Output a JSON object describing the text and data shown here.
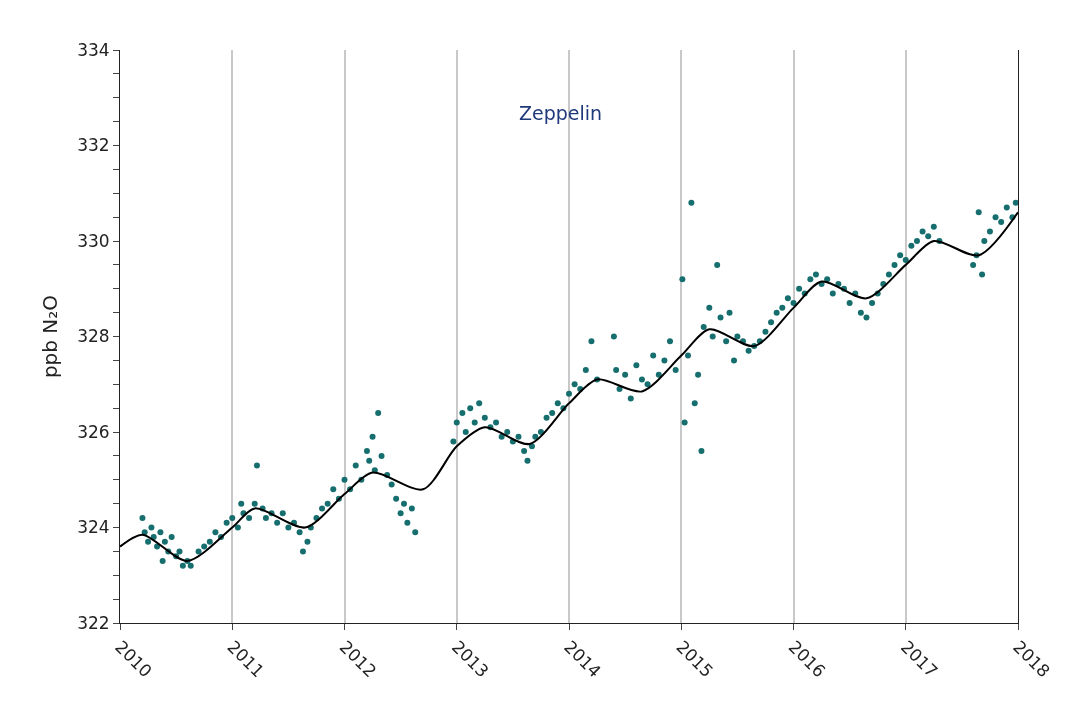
{
  "chart_data": {
    "type": "scatter",
    "ylabel": "ppb N₂O",
    "annotations": [
      "Zeppelin"
    ],
    "xlim": [
      2010,
      2018
    ],
    "xticks": [
      2010,
      2011,
      2012,
      2013,
      2014,
      2015,
      2016,
      2017,
      2018
    ],
    "ylim": [
      322,
      334
    ],
    "yticks": [
      322,
      {
        "value": 322.5,
        "label": null
      },
      {
        "value": 323,
        "label": null
      },
      {
        "value": 323.5,
        "label": null
      },
      324,
      {
        "value": 324.5,
        "label": null
      },
      {
        "value": 325,
        "label": null
      },
      {
        "value": 325.5,
        "label": null
      },
      326,
      {
        "value": 326.5,
        "label": null
      },
      {
        "value": 327,
        "label": null
      },
      {
        "value": 327.5,
        "label": null
      },
      328,
      {
        "value": 328.5,
        "label": null
      },
      {
        "value": 329,
        "label": null
      },
      {
        "value": 329.5,
        "label": null
      },
      330,
      {
        "value": 330.5,
        "label": null
      },
      {
        "value": 331,
        "label": null
      },
      {
        "value": 331.5,
        "label": null
      },
      332,
      {
        "value": 332.5,
        "label": null
      },
      {
        "value": 333,
        "label": null
      },
      {
        "value": 333.5,
        "label": null
      },
      334
    ],
    "grid": "x",
    "marker": "circle",
    "series": [
      {
        "color": "#176e6e",
        "x": [
          2010.2,
          2010.22,
          2010.25,
          2010.28,
          2010.3,
          2010.33,
          2010.36,
          2010.38,
          2010.4,
          2010.43,
          2010.46,
          2010.5,
          2010.53,
          2010.56,
          2010.6,
          2010.63,
          2010.7,
          2010.75,
          2010.8,
          2010.85,
          2010.9,
          2010.95,
          2011.0,
          2011.05,
          2011.08,
          2011.1,
          2011.15,
          2011.2,
          2011.22,
          2011.27,
          2011.3,
          2011.35,
          2011.4,
          2011.45,
          2011.5,
          2011.55,
          2011.6,
          2011.63,
          2011.67,
          2011.7,
          2011.75,
          2011.8,
          2011.85,
          2011.9,
          2011.95,
          2012.0,
          2012.05,
          2012.1,
          2012.15,
          2012.2,
          2012.22,
          2012.25,
          2012.27,
          2012.3,
          2012.33,
          2012.38,
          2012.42,
          2012.46,
          2012.5,
          2012.53,
          2012.56,
          2012.6,
          2012.63,
          2012.97,
          2013.0,
          2013.05,
          2013.08,
          2013.12,
          2013.16,
          2013.2,
          2013.25,
          2013.3,
          2013.35,
          2013.4,
          2013.45,
          2013.5,
          2013.55,
          2013.6,
          2013.63,
          2013.67,
          2013.7,
          2013.75,
          2013.8,
          2013.85,
          2013.9,
          2013.95,
          2014.0,
          2014.05,
          2014.1,
          2014.15,
          2014.2,
          2014.25,
          2014.4,
          2014.42,
          2014.45,
          2014.5,
          2014.55,
          2014.6,
          2014.65,
          2014.7,
          2014.75,
          2014.8,
          2014.85,
          2014.9,
          2014.95,
          2015.01,
          2015.03,
          2015.06,
          2015.09,
          2015.12,
          2015.15,
          2015.18,
          2015.2,
          2015.25,
          2015.28,
          2015.32,
          2015.35,
          2015.4,
          2015.43,
          2015.47,
          2015.5,
          2015.55,
          2015.6,
          2015.65,
          2015.7,
          2015.75,
          2015.8,
          2015.85,
          2015.9,
          2015.95,
          2016.0,
          2016.05,
          2016.1,
          2016.15,
          2016.2,
          2016.25,
          2016.3,
          2016.35,
          2016.4,
          2016.45,
          2016.5,
          2016.55,
          2016.6,
          2016.65,
          2016.7,
          2016.75,
          2016.8,
          2016.85,
          2016.9,
          2016.95,
          2017.0,
          2017.05,
          2017.1,
          2017.15,
          2017.2,
          2017.25,
          2017.3,
          2017.6,
          2017.63,
          2017.65,
          2017.68,
          2017.7,
          2017.75,
          2017.8,
          2017.85,
          2017.9,
          2017.95,
          2017.98
        ],
        "values": [
          324.2,
          323.9,
          323.7,
          324.0,
          323.8,
          323.6,
          323.9,
          323.3,
          323.7,
          323.5,
          323.8,
          323.4,
          323.5,
          323.2,
          323.3,
          323.2,
          323.5,
          323.6,
          323.7,
          323.9,
          323.8,
          324.1,
          324.2,
          324.0,
          324.5,
          324.3,
          324.2,
          324.5,
          325.3,
          324.4,
          324.2,
          324.3,
          324.1,
          324.3,
          324.0,
          324.1,
          323.9,
          323.5,
          323.7,
          324.0,
          324.2,
          324.4,
          324.5,
          324.8,
          324.6,
          325.0,
          324.8,
          325.3,
          325.0,
          325.6,
          325.4,
          325.9,
          325.2,
          326.4,
          325.5,
          325.1,
          324.9,
          324.6,
          324.3,
          324.5,
          324.1,
          324.4,
          323.9,
          325.8,
          326.2,
          326.4,
          326.0,
          326.5,
          326.2,
          326.6,
          326.3,
          326.1,
          326.2,
          325.9,
          326.0,
          325.8,
          325.9,
          325.6,
          325.4,
          325.7,
          325.9,
          326.0,
          326.3,
          326.4,
          326.6,
          326.5,
          326.8,
          327.0,
          326.9,
          327.3,
          327.9,
          327.1,
          328.0,
          327.3,
          326.9,
          327.2,
          326.7,
          327.4,
          327.1,
          327.0,
          327.6,
          327.2,
          327.5,
          327.9,
          327.3,
          329.2,
          326.2,
          327.6,
          330.8,
          326.6,
          327.2,
          325.6,
          328.2,
          328.6,
          328.0,
          329.5,
          328.4,
          327.9,
          328.5,
          327.5,
          328.0,
          327.9,
          327.7,
          327.8,
          327.9,
          328.1,
          328.3,
          328.5,
          328.6,
          328.8,
          328.7,
          329.0,
          328.9,
          329.2,
          329.3,
          329.1,
          329.2,
          328.9,
          329.1,
          329.0,
          328.7,
          328.9,
          328.5,
          328.4,
          328.7,
          328.9,
          329.1,
          329.3,
          329.5,
          329.7,
          329.6,
          329.9,
          330.0,
          330.2,
          330.1,
          330.3,
          330.0,
          329.5,
          329.7,
          330.6,
          329.3,
          330.0,
          330.2,
          330.5,
          330.4,
          330.7,
          330.5,
          330.8
        ]
      },
      {
        "type": "line",
        "color": "#000000",
        "marker": "none",
        "line_style": "solid",
        "x": [
          2010.0,
          2010.2,
          2010.6,
          2011.0,
          2011.2,
          2011.65,
          2012.0,
          2012.25,
          2012.7,
          2013.0,
          2013.25,
          2013.65,
          2014.0,
          2014.25,
          2014.65,
          2015.0,
          2015.25,
          2015.65,
          2016.0,
          2016.25,
          2016.65,
          2017.0,
          2017.25,
          2017.65,
          2018.0
        ],
        "values": [
          323.6,
          323.85,
          323.3,
          324.0,
          324.4,
          324.0,
          324.7,
          325.15,
          324.8,
          325.7,
          326.1,
          325.75,
          326.6,
          327.1,
          326.85,
          327.6,
          328.15,
          327.8,
          328.6,
          329.15,
          328.8,
          329.5,
          330.0,
          329.7,
          330.6
        ]
      }
    ]
  }
}
